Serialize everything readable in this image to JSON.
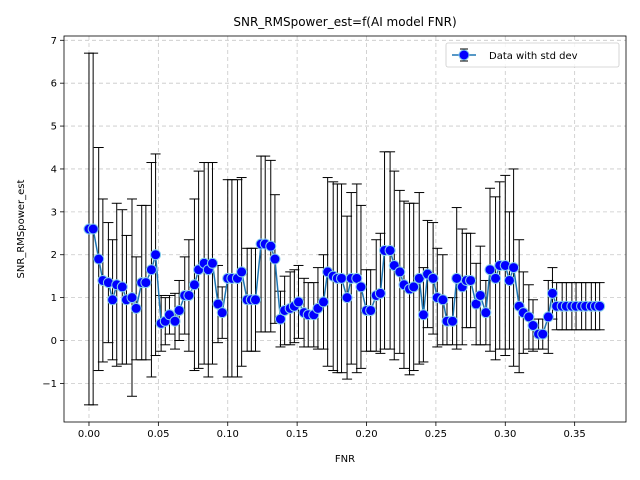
{
  "chart_data": {
    "type": "scatter",
    "title": "SNR_RMSpower_est=f(AI model FNR)",
    "xlabel": "FNR",
    "ylabel": "SNR_RMSpower_est",
    "xlim": [
      -0.018,
      0.387
    ],
    "ylim": [
      -1.9,
      7.1
    ],
    "x_ticks": [
      0.0,
      0.05,
      0.1,
      0.15,
      0.2,
      0.25,
      0.3,
      0.35
    ],
    "x_tick_labels": [
      "0.00",
      "0.05",
      "0.10",
      "0.15",
      "0.20",
      "0.25",
      "0.30",
      "0.35"
    ],
    "y_ticks": [
      -1,
      0,
      1,
      2,
      3,
      4,
      5,
      6,
      7
    ],
    "y_tick_labels": [
      "−1",
      "0",
      "1",
      "2",
      "3",
      "4",
      "5",
      "6",
      "7"
    ],
    "grid": true,
    "legend_position": "top-right",
    "colors": {
      "line": "#1f77b4",
      "marker_face": "#0000ff",
      "marker_edge": "#87ceeb",
      "errorbar": "#000000",
      "grid": "#c8c8c8"
    },
    "series": [
      {
        "name": "Data with std dev",
        "x": [
          0.0,
          0.003,
          0.007,
          0.01,
          0.014,
          0.017,
          0.02,
          0.024,
          0.027,
          0.031,
          0.034,
          0.038,
          0.041,
          0.045,
          0.048,
          0.052,
          0.055,
          0.058,
          0.062,
          0.065,
          0.069,
          0.072,
          0.076,
          0.079,
          0.083,
          0.086,
          0.089,
          0.093,
          0.096,
          0.1,
          0.103,
          0.107,
          0.11,
          0.114,
          0.117,
          0.12,
          0.124,
          0.127,
          0.131,
          0.134,
          0.138,
          0.141,
          0.145,
          0.148,
          0.151,
          0.155,
          0.158,
          0.162,
          0.165,
          0.169,
          0.172,
          0.176,
          0.179,
          0.182,
          0.186,
          0.189,
          0.193,
          0.196,
          0.2,
          0.203,
          0.207,
          0.21,
          0.213,
          0.217,
          0.22,
          0.224,
          0.227,
          0.231,
          0.234,
          0.238,
          0.241,
          0.244,
          0.248,
          0.251,
          0.255,
          0.258,
          0.262,
          0.265,
          0.269,
          0.272,
          0.275,
          0.279,
          0.282,
          0.286,
          0.289,
          0.293,
          0.296,
          0.3,
          0.303,
          0.306,
          0.31,
          0.313,
          0.317,
          0.32,
          0.324,
          0.327,
          0.331,
          0.334,
          0.337,
          0.341,
          0.344,
          0.348,
          0.351,
          0.355,
          0.358,
          0.362,
          0.365,
          0.368
        ],
        "y": [
          2.6,
          2.6,
          1.9,
          1.4,
          1.35,
          0.95,
          1.3,
          1.25,
          0.95,
          1.0,
          0.75,
          1.35,
          1.35,
          1.65,
          2.0,
          0.4,
          0.45,
          0.6,
          0.45,
          0.7,
          1.05,
          1.05,
          1.3,
          1.65,
          1.8,
          1.65,
          1.8,
          0.85,
          0.65,
          1.45,
          1.45,
          1.45,
          1.6,
          0.95,
          0.95,
          0.95,
          2.25,
          2.25,
          2.2,
          1.9,
          0.5,
          0.7,
          0.75,
          0.8,
          0.9,
          0.65,
          0.6,
          0.6,
          0.75,
          0.9,
          1.6,
          1.5,
          1.45,
          1.45,
          1.0,
          1.45,
          1.45,
          1.25,
          0.7,
          0.7,
          1.05,
          1.1,
          2.1,
          2.1,
          1.75,
          1.6,
          1.3,
          1.2,
          1.25,
          1.45,
          0.6,
          1.55,
          1.45,
          1.0,
          0.95,
          0.45,
          0.45,
          1.45,
          1.25,
          1.4,
          1.4,
          0.85,
          1.05,
          0.65,
          1.65,
          1.45,
          1.75,
          1.75,
          1.4,
          1.7,
          0.8,
          0.65,
          0.55,
          0.35,
          0.15,
          0.15,
          0.55,
          1.1,
          0.8,
          0.8,
          0.8,
          0.8,
          0.8,
          0.8,
          0.8,
          0.8,
          0.8,
          0.8
        ],
        "yerr": [
          4.1,
          4.1,
          2.6,
          1.9,
          1.4,
          1.4,
          1.9,
          1.8,
          1.5,
          2.3,
          1.2,
          1.8,
          1.8,
          2.5,
          2.35,
          0.65,
          0.55,
          0.45,
          0.65,
          0.7,
          0.9,
          1.3,
          2.0,
          2.3,
          2.35,
          2.5,
          2.35,
          0.9,
          0.6,
          2.3,
          2.3,
          2.3,
          2.2,
          1.2,
          1.2,
          1.2,
          2.05,
          2.05,
          2.0,
          1.5,
          0.65,
          0.8,
          0.85,
          0.85,
          0.85,
          0.8,
          0.75,
          0.75,
          0.95,
          1.1,
          2.2,
          2.2,
          2.2,
          2.2,
          1.9,
          2.0,
          2.2,
          1.9,
          0.95,
          0.95,
          1.3,
          1.4,
          2.3,
          2.3,
          2.2,
          1.9,
          1.95,
          2.0,
          1.95,
          2.0,
          1.1,
          1.25,
          1.3,
          1.15,
          1.05,
          0.55,
          0.55,
          1.65,
          1.35,
          1.1,
          1.1,
          0.95,
          1.15,
          0.75,
          1.9,
          1.9,
          1.95,
          2.1,
          1.6,
          2.3,
          1.55,
          0.95,
          0.75,
          0.6,
          0.35,
          0.35,
          0.85,
          0.6,
          0.55,
          0.55,
          0.55,
          0.55,
          0.55,
          0.55,
          0.55,
          0.55,
          0.55,
          0.55
        ]
      }
    ]
  }
}
